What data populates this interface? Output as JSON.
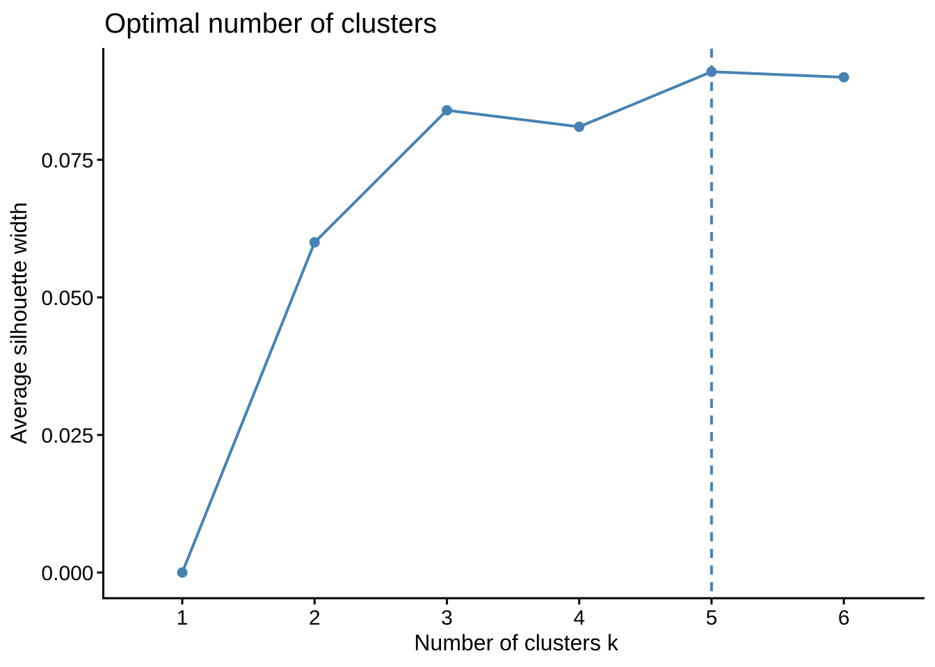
{
  "chart_data": {
    "type": "line",
    "title": "Optimal number of clusters",
    "xlabel": "Number of clusters k",
    "ylabel": "Average silhouette width",
    "x": [
      1,
      2,
      3,
      4,
      5,
      6
    ],
    "series": [
      {
        "name": "Average silhouette width",
        "values": [
          0.0,
          0.06,
          0.084,
          0.081,
          0.091,
          0.09
        ]
      }
    ],
    "x_tick_labels": [
      "1",
      "2",
      "3",
      "4",
      "5",
      "6"
    ],
    "y_tick_values": [
      0.0,
      0.025,
      0.05,
      0.075
    ],
    "y_tick_labels": [
      "0.000",
      "0.025",
      "0.050",
      "0.075"
    ],
    "xlim": [
      0.4,
      6.6
    ],
    "ylim": [
      -0.004,
      0.095
    ],
    "grid": false,
    "legend": "none",
    "optimal_k_vline": {
      "x": 5,
      "style": "dashed"
    },
    "colors": {
      "line": "#4682B4",
      "point": "#4682B4",
      "vline": "#4682B4",
      "axis": "#000000",
      "text": "#000000",
      "background": "#FFFFFF"
    }
  }
}
